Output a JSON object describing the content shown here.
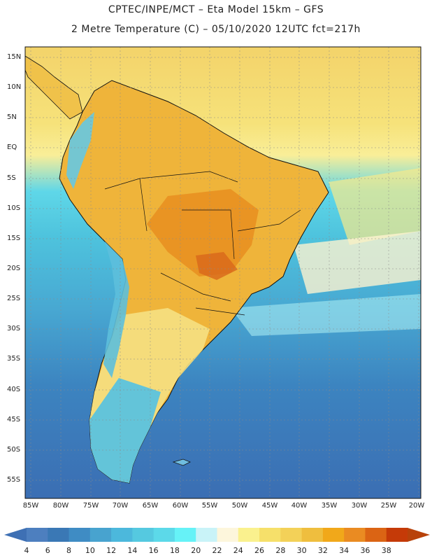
{
  "title": {
    "line1": "CPTEC/INPE/MCT –  Eta Model 15km – GFS",
    "line2": "2 Metre Temperature (C) – 05/10/2020 12UTC fct=217h"
  },
  "map": {
    "region": "South America",
    "lat_labels": [
      "15N",
      "10N",
      "5N",
      "EQ",
      "5S",
      "10S",
      "15S",
      "20S",
      "25S",
      "30S",
      "35S",
      "40S",
      "45S",
      "50S",
      "55S"
    ],
    "lon_labels": [
      "85W",
      "80W",
      "75W",
      "70W",
      "65W",
      "60W",
      "55W",
      "50W",
      "45W",
      "40W",
      "35W",
      "30W",
      "25W",
      "20W"
    ],
    "icons": [
      "coastline-outline",
      "country-borders",
      "state-borders",
      "lat-lon-grid"
    ]
  },
  "colorbar": {
    "labels": [
      "4",
      "6",
      "8",
      "10",
      "12",
      "14",
      "16",
      "18",
      "20",
      "22",
      "24",
      "26",
      "28",
      "30",
      "32",
      "34",
      "36",
      "38"
    ],
    "colors": [
      "#4d7fbf",
      "#3a78b5",
      "#3f8cc4",
      "#48a3cf",
      "#4cb8dc",
      "#55c9e0",
      "#5cd9e9",
      "#66f2f7",
      "#c9f3f8",
      "#fdf6dc",
      "#faf18e",
      "#f6e06a",
      "#f3d158",
      "#efbe3e",
      "#f1a81a",
      "#ea8b22",
      "#db6414",
      "#c53a08"
    ],
    "low_arrow_color": "#3e70b4",
    "high_arrow_color": "#b8420a"
  }
}
